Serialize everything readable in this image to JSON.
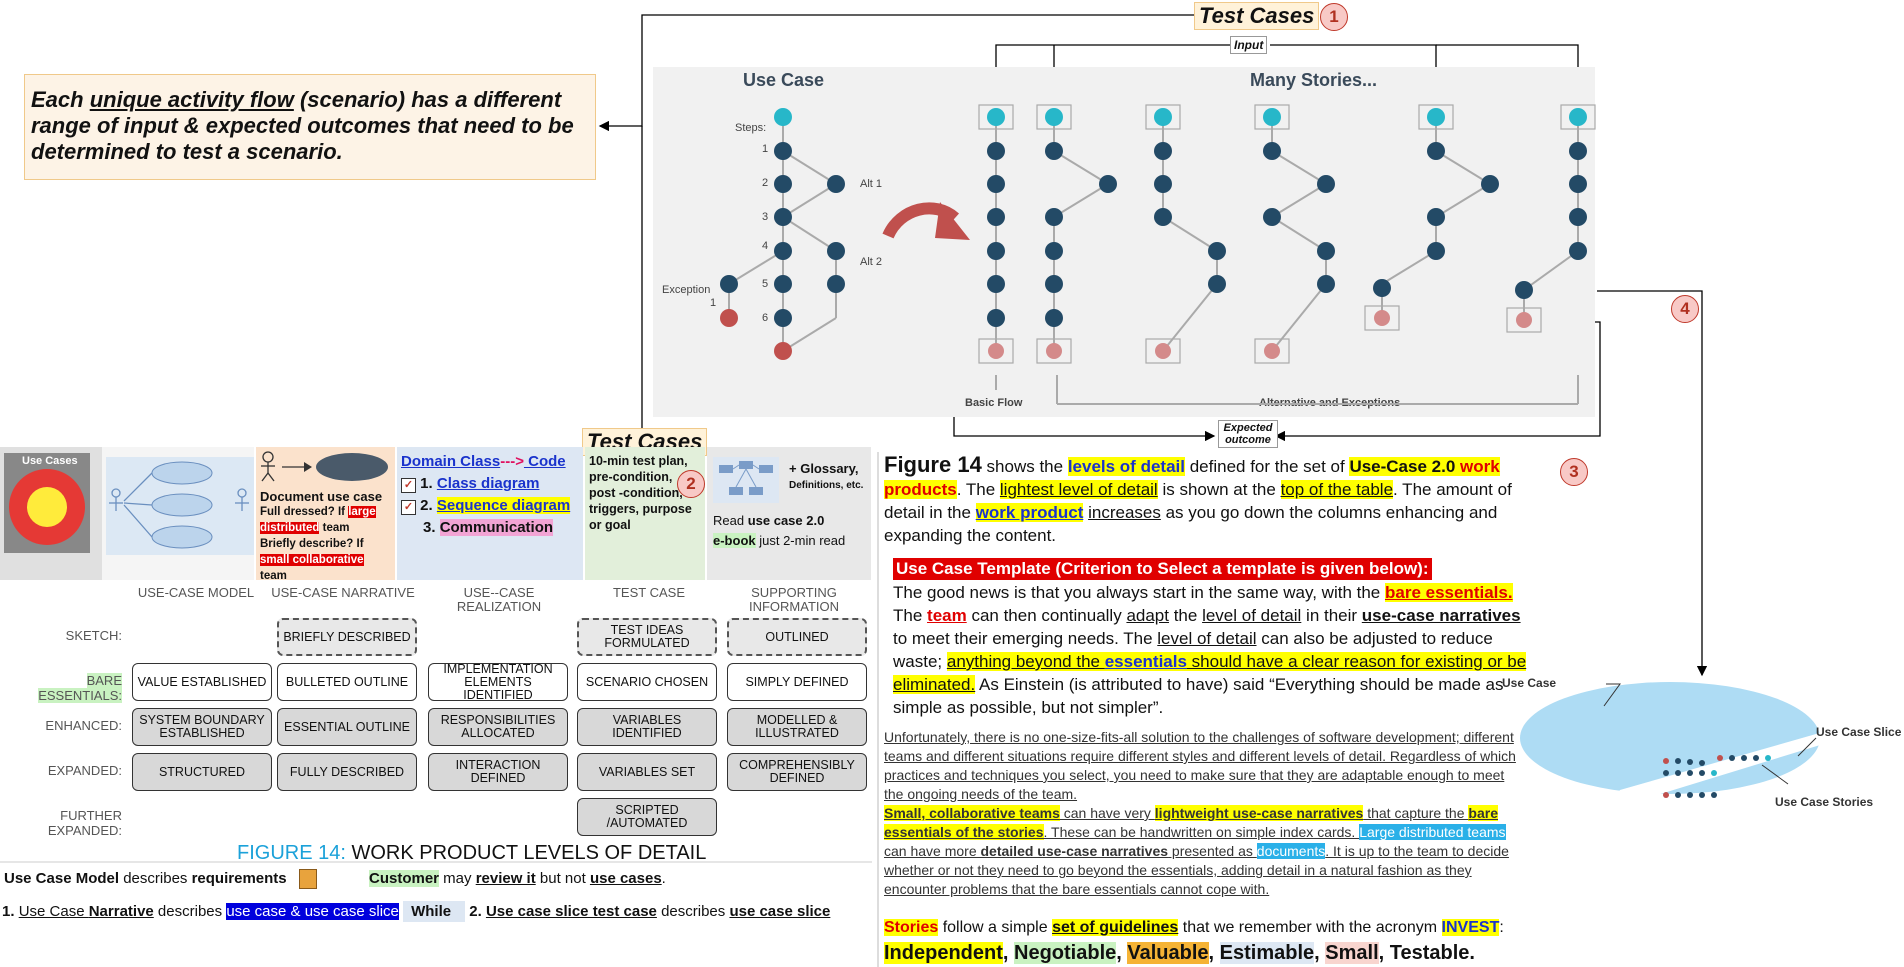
{
  "top_title": {
    "label": "Test Cases",
    "num": "1"
  },
  "input_label": "Input",
  "expected_label": "Expected outcome",
  "num4": "4",
  "num3": "3",
  "num2": "2",
  "quote": {
    "p1": "Each ",
    "p2": "unique activity flow",
    "p3": " (scenario) has a different range of input & expected outcomes that need to be determined to test a scenario."
  },
  "diagram": {
    "use_case_title": "Use Case",
    "many_title": "Many Stories...",
    "steps_label": "Steps:",
    "step_nums": [
      "1",
      "2",
      "3",
      "4",
      "5",
      "6"
    ],
    "alt1": "Alt 1",
    "alt2": "Alt 2",
    "exception": "Exception",
    "exception_num": "1",
    "basic_flow": "Basic Flow",
    "alt_exc": "Alternative and Exceptions"
  },
  "mid_title": "Test Cases",
  "header": {
    "use_cases_thumb": "Use Cases",
    "narr_title": "Document use case",
    "narr_l1a": "Full dressed? If ",
    "narr_l1b": "large distributed",
    "narr_l1c": " team",
    "narr_l2a": "Briefly describe? If ",
    "narr_l2b": "small collaborative",
    "narr_l2c": " team",
    "real_dc": "Domain Class",
    "real_arrow": "--->",
    "real_code": " Code",
    "real_1": "1. ",
    "real_1b": "Class diagram",
    "real_2": "2. ",
    "real_2b": "Sequence diagram",
    "real_3": "3. ",
    "real_3b": "Communication",
    "test_text": "10-min test plan, pre-condition, post -condition, triggers, purpose or goal",
    "supp_plus": "+ Glossary,",
    "supp_defs": "Definitions, etc.",
    "supp_read": "Read ",
    "supp_uc": "use case 2.0",
    "supp_eb": "e-book",
    "supp_rest": " just 2-min read"
  },
  "table": {
    "columns": [
      "USE-CASE MODEL",
      "USE-CASE NARRATIVE",
      "USE--CASE REALIZATION",
      "TEST CASE",
      "SUPPORTING INFORMATION"
    ],
    "rows": [
      "SKETCH:",
      "BARE ESSENTIALS:",
      "ENHANCED:",
      "EXPANDED:",
      "FURTHER EXPANDED:"
    ],
    "cells": {
      "sketch": [
        "BRIEFLY DESCRIBED",
        "TEST IDEAS FORMULATED",
        "OUTLINED"
      ],
      "bare": [
        "VALUE ESTABLISHED",
        "BULLETED OUTLINE",
        "IMPLEMENTATION ELEMENTS IDENTIFIED",
        "SCENARIO CHOSEN",
        "SIMPLY DEFINED"
      ],
      "enhanced": [
        "SYSTEM BOUNDARY ESTABLISHED",
        "ESSENTIAL OUTLINE",
        "RESPONSIBILITIES ALLOCATED",
        "VARIABLES IDENTIFIED",
        "MODELLED & ILLUSTRATED"
      ],
      "expanded": [
        "STRUCTURED",
        "FULLY DESCRIBED",
        "INTERACTION DEFINED",
        "VARIABLES SET",
        "COMPREHENSIBLY DEFINED"
      ],
      "further": [
        "SCRIPTED /AUTOMATED"
      ]
    }
  },
  "figure_caption": {
    "a": "FIGURE 14:",
    "b": " WORK PRODUCT LEVELS OF DETAIL"
  },
  "bottom": {
    "l1a": "Use Case Model",
    "l1b": " describes ",
    "l1c": "requirements",
    "l1d": "Customer",
    "l1e": " may ",
    "l1f": "review it",
    "l1g": " but not ",
    "l1h": "use cases",
    "l1i": ".",
    "l2a": "1. ",
    "l2b": "Use Case ",
    "l2c": "Narrative",
    "l2d": " describes ",
    "l2e": "use case & use case slice",
    "l2f": "While",
    "l2g": "2. ",
    "l2h": "Use case slice test case",
    "l2i": " describes ",
    "l2j": "use case slice"
  },
  "right": {
    "fig": "Figure 14",
    "s1": " shows the ",
    "s2": "levels of detail",
    "s3": " defined for the set of ",
    "s4": "Use-Case 2.0",
    "s5": " work products",
    "s6": ". The ",
    "s7": "lightest level of detail",
    "s8": " is shown at the ",
    "s9": "top of the table",
    "s10": ". The amount of detail in the ",
    "s11": "work product",
    "s12": " ",
    "s13": "increases",
    "s14": " as you go down the columns enhancing and expanding the content.",
    "tmpl": "Use Case Template (Criterion to Select a template is given below):",
    "g1": "The good news is that you always start in the same way, with the ",
    "g2": "bare essentials.",
    "g3": " The ",
    "g4": "team",
    "g5": " can then continually ",
    "g6": "adapt",
    "g7": " the ",
    "g8": "level of detail",
    "g9": " in their ",
    "g10": "use-case narratives",
    "g11": " to meet their emerging needs. The ",
    "g12": "level of detail",
    "g13": " can also be adjusted to reduce waste; ",
    "g14": "anything beyond the ",
    "g15": "essentials",
    "g16": " should have a clear reason for existing or be eliminated.",
    "g17": " As Einstein (is attributed to have) said “Everything should be made as simple as possible, but not simpler”.",
    "f1": "Unfortunately, there is no one-size-fits-all solution to the challenges of software development; different teams and different situations require different styles and different levels of detail. Regardless of which practices and techniques  you select, you need to make sure that they are adaptable  enough to meet the ongoing needs of the team.",
    "f2": "Small, collaborative teams",
    "f3": " can have  very ",
    "f4": "lightweight use-case narratives",
    "f5": " that capture the ",
    "f6": "bare essentials of the stories",
    "f7": ". These can be handwritten on simple  index cards. ",
    "f8": "Large distributed teams",
    "f9": " can have more ",
    "f10": "detailed use-case narratives",
    "f11": " presented as ",
    "f12": "documents",
    "f13": ". It is up to the team to decide whether or not they need to go beyond the essentials, adding detail in a natural fashion as they encounter  problems that the bare essentials cannot cope with.",
    "st1": "Stories",
    "st2": " follow a simple ",
    "st3": "set of guidelines",
    "st4": " that we remember with the acronym ",
    "st5": "INVEST",
    "st6": ":",
    "inv": [
      "Independent",
      "Negotiable",
      "Valuable",
      "Estimable",
      "Small",
      "Testable."
    ]
  },
  "slice_diagram": {
    "use_case": "Use Case",
    "slice": "Use Case Slice",
    "stories": "Use Case Stories"
  },
  "colors": {
    "node_dark": "#234a66",
    "node_cyan": "#27b7c9",
    "node_red": "#c0504d",
    "ellipse": "#aedcf4",
    "highlight_yellow": "#ffff00"
  }
}
